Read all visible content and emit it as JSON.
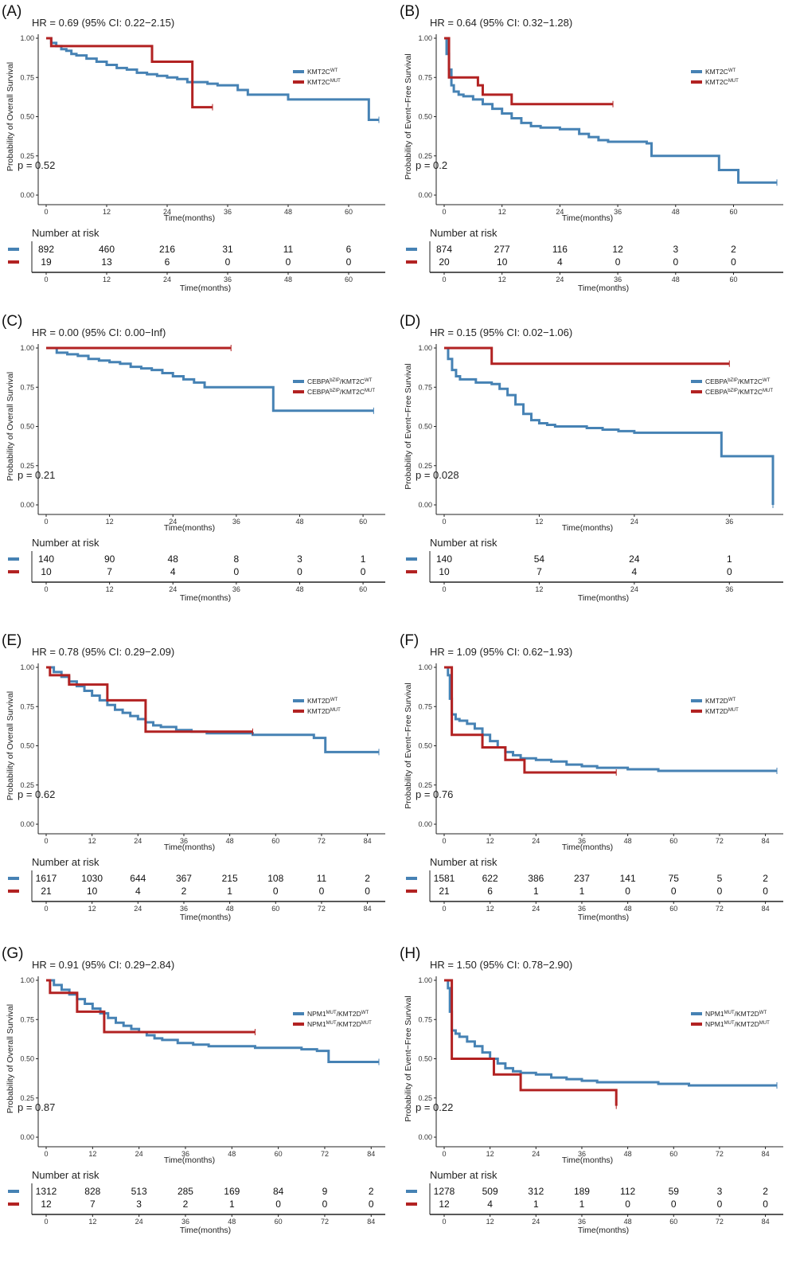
{
  "colors": {
    "wt": "#4682B4",
    "mut": "#B22222"
  },
  "chart_data": [
    {
      "type": "line",
      "panel": "(A)",
      "hr_text": "HR = 0.69 (95% CI: 0.22−2.15)",
      "p_text": "p = 0.52",
      "ylabel": "Probability of Overall Survival",
      "xlabel": "Time(months)",
      "xticks": [
        0,
        12,
        24,
        36,
        48,
        60
      ],
      "yticks": [
        "0.00",
        "0.25",
        "0.50",
        "0.75",
        "1.00"
      ],
      "xlim": [
        0,
        66
      ],
      "ylim": [
        0,
        1
      ],
      "legend": [
        {
          "base": "KMT2C",
          "sup": "WT"
        },
        {
          "base": "KMT2C",
          "sup": "MUT"
        }
      ],
      "series": [
        {
          "x": [
            0,
            1,
            2,
            3,
            4,
            5,
            6,
            8,
            10,
            12,
            14,
            16,
            18,
            20,
            22,
            24,
            26,
            28,
            30,
            32,
            34,
            36,
            38,
            40,
            42,
            48,
            54,
            60,
            61,
            62,
            64,
            66
          ],
          "y": [
            1,
            0.97,
            0.95,
            0.93,
            0.92,
            0.9,
            0.89,
            0.87,
            0.85,
            0.83,
            0.81,
            0.8,
            0.78,
            0.77,
            0.76,
            0.75,
            0.74,
            0.72,
            0.72,
            0.71,
            0.7,
            0.7,
            0.67,
            0.64,
            0.64,
            0.61,
            0.61,
            0.61,
            0.61,
            0.61,
            0.48,
            0.48
          ]
        },
        {
          "x": [
            0,
            1,
            5,
            21,
            29,
            33
          ],
          "y": [
            1,
            0.95,
            0.95,
            0.85,
            0.56,
            0.56
          ]
        }
      ],
      "risk": {
        "title": "Number at risk",
        "times": [
          0,
          12,
          24,
          36,
          48,
          60
        ],
        "wt": [
          892,
          460,
          216,
          31,
          11,
          6
        ],
        "mut": [
          19,
          13,
          6,
          0,
          0,
          0
        ]
      }
    },
    {
      "type": "line",
      "panel": "(B)",
      "hr_text": "HR = 0.64 (95% CI: 0.32−1.28)",
      "p_text": "p = 0.2",
      "ylabel": "Probability of Event−Free Survival",
      "xlabel": "Time(months)",
      "xticks": [
        0,
        12,
        24,
        36,
        48,
        60
      ],
      "yticks": [
        "0.00",
        "0.25",
        "0.50",
        "0.75",
        "1.00"
      ],
      "xlim": [
        0,
        69
      ],
      "ylim": [
        0,
        1
      ],
      "legend": [
        {
          "base": "KMT2C",
          "sup": "WT"
        },
        {
          "base": "KMT2C",
          "sup": "MUT"
        }
      ],
      "series": [
        {
          "x": [
            0,
            0.5,
            1,
            1.5,
            2,
            3,
            4,
            6,
            8,
            10,
            12,
            14,
            16,
            18,
            20,
            24,
            28,
            30,
            32,
            34,
            36,
            38,
            40,
            42,
            43,
            48,
            52,
            56,
            57,
            60,
            61,
            64,
            69
          ],
          "y": [
            1,
            0.9,
            0.8,
            0.7,
            0.66,
            0.64,
            0.63,
            0.61,
            0.58,
            0.55,
            0.52,
            0.49,
            0.46,
            0.44,
            0.43,
            0.42,
            0.39,
            0.37,
            0.35,
            0.34,
            0.34,
            0.34,
            0.34,
            0.33,
            0.25,
            0.25,
            0.25,
            0.25,
            0.16,
            0.16,
            0.08,
            0.08,
            0.08
          ]
        },
        {
          "x": [
            0,
            1,
            2,
            7,
            8,
            14,
            35
          ],
          "y": [
            1,
            0.75,
            0.75,
            0.7,
            0.64,
            0.58,
            0.58
          ]
        }
      ],
      "risk": {
        "title": "Number at risk",
        "times": [
          0,
          12,
          24,
          36,
          48,
          60
        ],
        "wt": [
          874,
          277,
          116,
          12,
          3,
          2
        ],
        "mut": [
          20,
          10,
          4,
          0,
          0,
          0
        ]
      }
    },
    {
      "type": "line",
      "panel": "(C)",
      "hr_text": "HR = 0.00 (95% CI: 0.00−Inf)",
      "p_text": "p = 0.21",
      "ylabel": "Probability of Overall Survival",
      "xlabel": "Time(months)",
      "xticks": [
        0,
        12,
        24,
        36,
        48,
        60
      ],
      "yticks": [
        "0.00",
        "0.25",
        "0.50",
        "0.75",
        "1.00"
      ],
      "xlim": [
        0,
        63
      ],
      "ylim": [
        0,
        1
      ],
      "legend": [
        {
          "base": "CEBPA",
          "sup": "bZIP",
          "tail": "/KMT2C",
          "sup2": "WT"
        },
        {
          "base": "CEBPA",
          "sup": "bZIP",
          "tail": "/KMT2C",
          "sup2": "MUT"
        }
      ],
      "series": [
        {
          "x": [
            0,
            2,
            4,
            6,
            8,
            10,
            12,
            14,
            16,
            18,
            20,
            22,
            24,
            26,
            28,
            30,
            32,
            34,
            36,
            40,
            42,
            43,
            48,
            60,
            62
          ],
          "y": [
            1,
            0.97,
            0.96,
            0.95,
            0.93,
            0.92,
            0.91,
            0.9,
            0.88,
            0.87,
            0.86,
            0.84,
            0.82,
            0.8,
            0.78,
            0.75,
            0.75,
            0.75,
            0.75,
            0.75,
            0.75,
            0.6,
            0.6,
            0.6,
            0.6
          ]
        },
        {
          "x": [
            0,
            35
          ],
          "y": [
            1,
            1
          ]
        }
      ],
      "risk": {
        "title": "Number at risk",
        "times": [
          0,
          12,
          24,
          36,
          48,
          60
        ],
        "wt": [
          140,
          90,
          48,
          8,
          3,
          1
        ],
        "mut": [
          10,
          7,
          4,
          0,
          0,
          0
        ]
      }
    },
    {
      "type": "line",
      "panel": "(D)",
      "hr_text": "HR = 0.15 (95% CI: 0.02−1.06)",
      "p_text": "p = 0.028",
      "ylabel": "Probability of Event−Free Survival",
      "xlabel": "Time(months)",
      "xticks": [
        0,
        12,
        24,
        36
      ],
      "yticks": [
        "0.00",
        "0.25",
        "0.50",
        "0.75",
        "1.00"
      ],
      "xlim": [
        0,
        42
      ],
      "ylim": [
        0,
        1
      ],
      "legend": [
        {
          "base": "CEBPA",
          "sup": "bZIP",
          "tail": "/KMT2C",
          "sup2": "WT"
        },
        {
          "base": "CEBPA",
          "sup": "bZIP",
          "tail": "/KMT2C",
          "sup2": "MUT"
        }
      ],
      "series": [
        {
          "x": [
            0,
            0.5,
            1,
            1.5,
            2,
            4,
            6,
            7,
            8,
            9,
            10,
            11,
            12,
            13,
            14,
            16,
            18,
            20,
            22,
            24,
            28,
            32,
            34,
            35,
            40,
            41.5
          ],
          "y": [
            1,
            0.93,
            0.86,
            0.82,
            0.8,
            0.78,
            0.77,
            0.74,
            0.7,
            0.64,
            0.58,
            0.54,
            0.52,
            0.51,
            0.5,
            0.5,
            0.49,
            0.48,
            0.47,
            0.46,
            0.46,
            0.46,
            0.46,
            0.31,
            0.31,
            0
          ]
        },
        {
          "x": [
            0,
            6,
            7,
            36
          ],
          "y": [
            1,
            0.9,
            0.9,
            0.9
          ]
        }
      ],
      "risk": {
        "title": "Number at risk",
        "times": [
          0,
          12,
          24,
          36
        ],
        "wt": [
          140,
          54,
          24,
          1
        ],
        "mut": [
          10,
          7,
          4,
          0
        ]
      }
    },
    {
      "type": "line",
      "panel": "(E)",
      "hr_text": "HR = 0.78 (95% CI: 0.29−2.09)",
      "p_text": "p = 0.62",
      "ylabel": "Probability of Overall Survival",
      "xlabel": "Time(months)",
      "xticks": [
        0,
        12,
        24,
        36,
        48,
        60,
        72,
        84
      ],
      "yticks": [
        "0.00",
        "0.25",
        "0.50",
        "0.75",
        "1.00"
      ],
      "xlim": [
        0,
        87
      ],
      "ylim": [
        0,
        1
      ],
      "legend": [
        {
          "base": "KMT2D",
          "sup": "WT"
        },
        {
          "base": "KMT2D",
          "sup": "MUT"
        }
      ],
      "series": [
        {
          "x": [
            0,
            2,
            4,
            6,
            8,
            10,
            12,
            14,
            16,
            18,
            20,
            22,
            24,
            26,
            28,
            30,
            34,
            38,
            42,
            48,
            54,
            60,
            66,
            70,
            72,
            73,
            80,
            87
          ],
          "y": [
            1,
            0.97,
            0.94,
            0.91,
            0.88,
            0.85,
            0.82,
            0.79,
            0.76,
            0.73,
            0.71,
            0.69,
            0.67,
            0.65,
            0.63,
            0.62,
            0.6,
            0.59,
            0.58,
            0.58,
            0.57,
            0.57,
            0.57,
            0.55,
            0.55,
            0.46,
            0.46,
            0.46
          ]
        },
        {
          "x": [
            0,
            1,
            6,
            16,
            26,
            54
          ],
          "y": [
            1,
            0.95,
            0.89,
            0.79,
            0.59,
            0.59
          ]
        }
      ],
      "risk": {
        "title": "Number at risk",
        "times": [
          0,
          12,
          24,
          36,
          48,
          60,
          72,
          84
        ],
        "wt": [
          1617,
          1030,
          644,
          367,
          215,
          108,
          11,
          2
        ],
        "mut": [
          21,
          10,
          4,
          2,
          1,
          0,
          0,
          0
        ]
      }
    },
    {
      "type": "line",
      "panel": "(F)",
      "hr_text": "HR = 1.09 (95% CI: 0.62−1.93)",
      "p_text": "p = 0.76",
      "ylabel": "Probability of Event−Free Survival",
      "xlabel": "Time(months)",
      "xticks": [
        0,
        12,
        24,
        36,
        48,
        60,
        72,
        84
      ],
      "yticks": [
        "0.00",
        "0.25",
        "0.50",
        "0.75",
        "1.00"
      ],
      "xlim": [
        0,
        87
      ],
      "ylim": [
        0,
        1
      ],
      "legend": [
        {
          "base": "KMT2D",
          "sup": "WT"
        },
        {
          "base": "KMT2D",
          "sup": "MUT"
        }
      ],
      "series": [
        {
          "x": [
            0,
            1,
            1.5,
            2,
            3,
            4,
            6,
            8,
            10,
            12,
            14,
            16,
            18,
            20,
            24,
            28,
            32,
            36,
            40,
            48,
            56,
            64,
            72,
            80,
            87
          ],
          "y": [
            1,
            0.95,
            0.8,
            0.7,
            0.67,
            0.66,
            0.64,
            0.61,
            0.57,
            0.53,
            0.49,
            0.46,
            0.44,
            0.42,
            0.41,
            0.4,
            0.38,
            0.37,
            0.36,
            0.35,
            0.34,
            0.34,
            0.34,
            0.34,
            0.34
          ]
        },
        {
          "x": [
            0,
            2,
            3,
            9,
            10,
            15,
            16,
            21,
            45
          ],
          "y": [
            1,
            0.57,
            0.57,
            0.57,
            0.49,
            0.49,
            0.41,
            0.33,
            0.33
          ]
        }
      ],
      "risk": {
        "title": "Number at risk",
        "times": [
          0,
          12,
          24,
          36,
          48,
          60,
          72,
          84
        ],
        "wt": [
          1581,
          622,
          386,
          237,
          141,
          75,
          5,
          2
        ],
        "mut": [
          21,
          6,
          1,
          1,
          0,
          0,
          0,
          0
        ]
      }
    },
    {
      "type": "line",
      "panel": "(G)",
      "hr_text": "HR = 0.91 (95% CI: 0.29−2.84)",
      "p_text": "p = 0.87",
      "ylabel": "Probability of Overall Survival",
      "xlabel": "Time(months)",
      "xticks": [
        0,
        12,
        24,
        36,
        48,
        60,
        72,
        84
      ],
      "yticks": [
        "0.00",
        "0.25",
        "0.50",
        "0.75",
        "1.00"
      ],
      "xlim": [
        0,
        86
      ],
      "ylim": [
        0,
        1
      ],
      "legend": [
        {
          "base": "NPM1",
          "sup": "MUT",
          "tail": "/KMT2D",
          "sup2": "WT"
        },
        {
          "base": "NPM1",
          "sup": "MUT",
          "tail": "/KMT2D",
          "sup2": "MUT"
        }
      ],
      "series": [
        {
          "x": [
            0,
            2,
            4,
            6,
            8,
            10,
            12,
            14,
            16,
            18,
            20,
            22,
            24,
            26,
            28,
            30,
            34,
            38,
            42,
            48,
            54,
            60,
            66,
            70,
            72,
            73,
            80,
            86
          ],
          "y": [
            1,
            0.97,
            0.94,
            0.91,
            0.88,
            0.85,
            0.82,
            0.79,
            0.76,
            0.73,
            0.71,
            0.69,
            0.67,
            0.65,
            0.63,
            0.62,
            0.6,
            0.59,
            0.58,
            0.58,
            0.57,
            0.57,
            0.56,
            0.55,
            0.55,
            0.48,
            0.48,
            0.48
          ]
        },
        {
          "x": [
            0,
            1,
            6,
            8,
            15,
            54
          ],
          "y": [
            1,
            0.92,
            0.92,
            0.8,
            0.67,
            0.67
          ]
        }
      ],
      "risk": {
        "title": "Number at risk",
        "times": [
          0,
          12,
          24,
          36,
          48,
          60,
          72,
          84
        ],
        "wt": [
          1312,
          828,
          513,
          285,
          169,
          84,
          9,
          2
        ],
        "mut": [
          12,
          7,
          3,
          2,
          1,
          0,
          0,
          0
        ]
      }
    },
    {
      "type": "line",
      "panel": "(H)",
      "hr_text": "HR = 1.50 (95% CI: 0.78−2.90)",
      "p_text": "p = 0.22",
      "ylabel": "Probability of Event−Free Survival",
      "xlabel": "Time(months)",
      "xticks": [
        0,
        12,
        24,
        36,
        48,
        60,
        72,
        84
      ],
      "yticks": [
        "0.00",
        "0.25",
        "0.50",
        "0.75",
        "1.00"
      ],
      "xlim": [
        0,
        87
      ],
      "ylim": [
        0,
        1
      ],
      "legend": [
        {
          "base": "NPM1",
          "sup": "MUT",
          "tail": "/KMT2D",
          "sup2": "WT"
        },
        {
          "base": "NPM1",
          "sup": "MUT",
          "tail": "/KMT2D",
          "sup2": "MUT"
        }
      ],
      "series": [
        {
          "x": [
            0,
            1,
            1.5,
            2,
            3,
            4,
            6,
            8,
            10,
            12,
            14,
            16,
            18,
            20,
            24,
            28,
            32,
            36,
            40,
            48,
            56,
            64,
            72,
            80,
            87
          ],
          "y": [
            1,
            0.95,
            0.8,
            0.68,
            0.66,
            0.64,
            0.61,
            0.58,
            0.54,
            0.5,
            0.47,
            0.44,
            0.42,
            0.41,
            0.4,
            0.38,
            0.37,
            0.36,
            0.35,
            0.35,
            0.34,
            0.33,
            0.33,
            0.33,
            0.33
          ]
        },
        {
          "x": [
            0,
            1,
            2,
            8,
            13,
            20,
            45
          ],
          "y": [
            1,
            1,
            0.5,
            0.5,
            0.4,
            0.3,
            0.2
          ]
        }
      ],
      "risk": {
        "title": "Number at risk",
        "times": [
          0,
          12,
          24,
          36,
          48,
          60,
          72,
          84
        ],
        "wt": [
          1278,
          509,
          312,
          189,
          112,
          59,
          3,
          2
        ],
        "mut": [
          12,
          4,
          1,
          1,
          0,
          0,
          0,
          0
        ]
      }
    }
  ]
}
